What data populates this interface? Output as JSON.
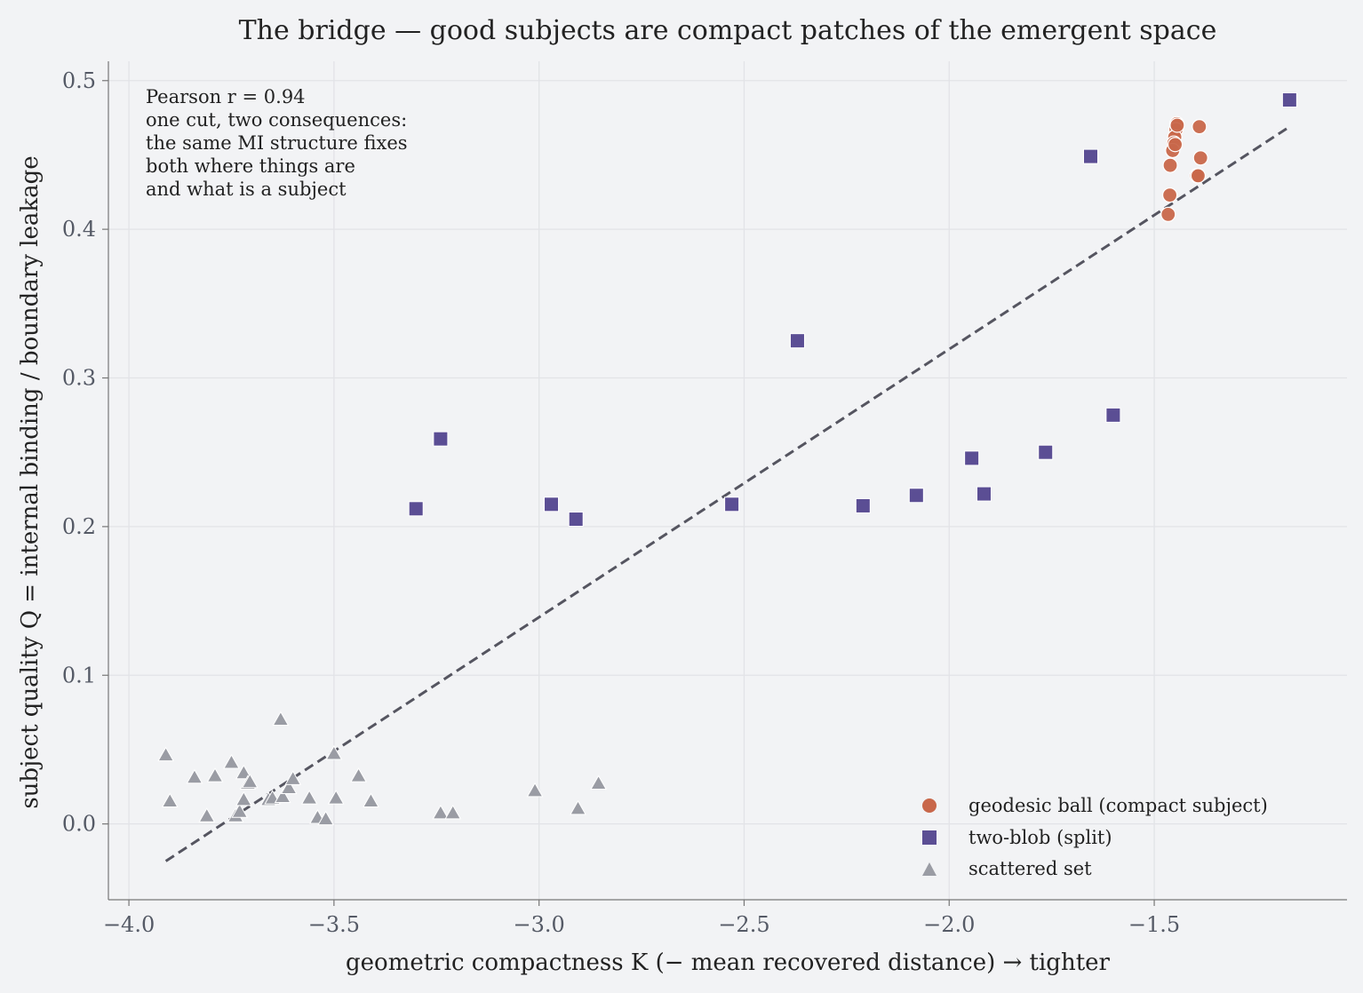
{
  "chart_data": {
    "type": "scatter",
    "title": "The bridge — good subjects are compact patches of the emergent space",
    "xlabel": "geometric compactness  K  (− mean recovered distance) →  tighter",
    "ylabel": "subject quality  Q  =  internal binding / boundary leakage",
    "xlim": [
      -4.05,
      -1.03
    ],
    "ylim": [
      -0.051,
      0.513
    ],
    "xticks": [
      -4.0,
      -3.5,
      -3.0,
      -2.5,
      -2.0,
      -1.5
    ],
    "xtick_labels": [
      "−4.0",
      "−3.5",
      "−3.0",
      "−2.5",
      "−2.0",
      "−1.5"
    ],
    "yticks": [
      0.0,
      0.1,
      0.2,
      0.3,
      0.4,
      0.5
    ],
    "ytick_labels": [
      "0.0",
      "0.1",
      "0.2",
      "0.3",
      "0.4",
      "0.5"
    ],
    "grid": true,
    "legend_position": "lower-right",
    "annotation": [
      "Pearson r = 0.94",
      "one cut, two consequences:",
      "the same MI structure fixes",
      "both where things are",
      "and what is a subject"
    ],
    "fit_line": {
      "style": "dashed",
      "color": "#555560",
      "x": [
        -3.91,
        -1.17
      ],
      "y": [
        -0.025,
        0.469
      ]
    },
    "series": [
      {
        "name": "geodesic ball (compact subject)",
        "marker": "circle",
        "color": "#c8674a",
        "points": [
          [
            -1.445,
            0.471
          ],
          [
            -1.447,
            0.467
          ],
          [
            -1.45,
            0.462
          ],
          [
            -1.452,
            0.458
          ],
          [
            -1.455,
            0.453
          ],
          [
            -1.449,
            0.457
          ],
          [
            -1.461,
            0.443
          ],
          [
            -1.462,
            0.423
          ],
          [
            -1.466,
            0.41
          ],
          [
            -1.39,
            0.469
          ],
          [
            -1.387,
            0.448
          ],
          [
            -1.396,
            0.436
          ],
          [
            -1.393,
            0.436
          ],
          [
            -1.444,
            0.47
          ]
        ]
      },
      {
        "name": "two-blob (split)",
        "marker": "square",
        "color": "#5b4e94",
        "points": [
          [
            -1.17,
            0.487
          ],
          [
            -1.655,
            0.449
          ],
          [
            -2.37,
            0.325
          ],
          [
            -3.24,
            0.259
          ],
          [
            -3.3,
            0.212
          ],
          [
            -2.97,
            0.215
          ],
          [
            -2.91,
            0.205
          ],
          [
            -2.53,
            0.215
          ],
          [
            -2.21,
            0.214
          ],
          [
            -2.08,
            0.221
          ],
          [
            -1.945,
            0.246
          ],
          [
            -1.915,
            0.222
          ],
          [
            -1.765,
            0.25
          ],
          [
            -1.6,
            0.275
          ]
        ]
      },
      {
        "name": "scattered set",
        "marker": "triangle",
        "color": "#9a9ca4",
        "points": [
          [
            -3.91,
            0.046
          ],
          [
            -3.9,
            0.015
          ],
          [
            -3.84,
            0.031
          ],
          [
            -3.81,
            0.005
          ],
          [
            -3.79,
            0.032
          ],
          [
            -3.75,
            0.041
          ],
          [
            -3.74,
            0.005
          ],
          [
            -3.73,
            0.008
          ],
          [
            -3.72,
            0.034
          ],
          [
            -3.72,
            0.016
          ],
          [
            -3.71,
            0.027
          ],
          [
            -3.705,
            0.028
          ],
          [
            -3.66,
            0.016
          ],
          [
            -3.65,
            0.017
          ],
          [
            -3.63,
            0.07
          ],
          [
            -3.625,
            0.018
          ],
          [
            -3.61,
            0.024
          ],
          [
            -3.6,
            0.03
          ],
          [
            -3.56,
            0.017
          ],
          [
            -3.54,
            0.004
          ],
          [
            -3.52,
            0.003
          ],
          [
            -3.5,
            0.047
          ],
          [
            -3.495,
            0.017
          ],
          [
            -3.44,
            0.032
          ],
          [
            -3.41,
            0.015
          ],
          [
            -3.24,
            0.007
          ],
          [
            -3.21,
            0.007
          ],
          [
            -3.01,
            0.022
          ],
          [
            -2.905,
            0.01
          ],
          [
            -2.855,
            0.027
          ]
        ]
      }
    ]
  }
}
